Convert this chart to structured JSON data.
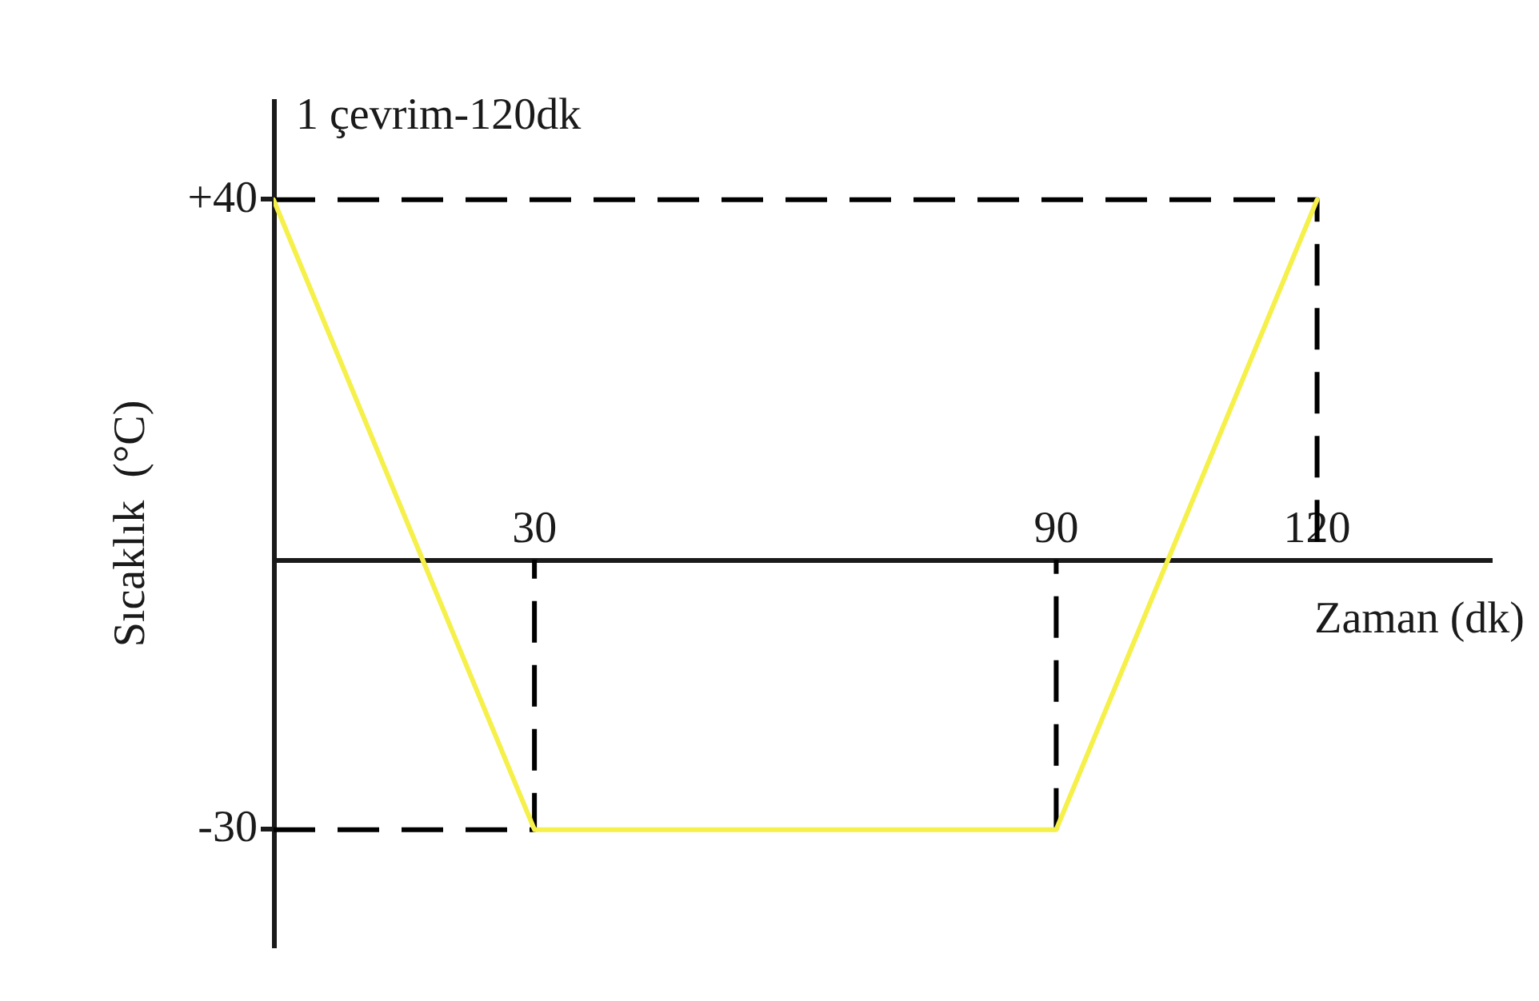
{
  "chart_data": {
    "type": "line",
    "title": "1 çevrim-120dk",
    "xlabel": "Zaman (dk)",
    "ylabel": "Sıcaklık  (°C)",
    "xlim": [
      0,
      140
    ],
    "xticks": [
      30,
      90,
      120
    ],
    "ylim": [
      -43,
      51
    ],
    "yticks": [
      {
        "value": 40,
        "label": "+40"
      },
      -30
    ],
    "series": [
      {
        "color": "#f5f04a",
        "x": [
          0,
          30,
          90,
          120
        ],
        "values": [
          40,
          -30,
          -30,
          40
        ]
      },
      {
        "color": "#000000",
        "line_style": "dashed",
        "x": [
          0,
          120,
          120
        ],
        "values": [
          40,
          40,
          0
        ]
      },
      {
        "color": "#000000",
        "line_style": "dashed",
        "x": [
          0,
          30,
          30
        ],
        "values": [
          -30,
          -30,
          0
        ]
      },
      {
        "color": "#000000",
        "line_style": "dashed",
        "x": [
          90,
          90
        ],
        "values": [
          -30,
          0
        ]
      }
    ]
  }
}
